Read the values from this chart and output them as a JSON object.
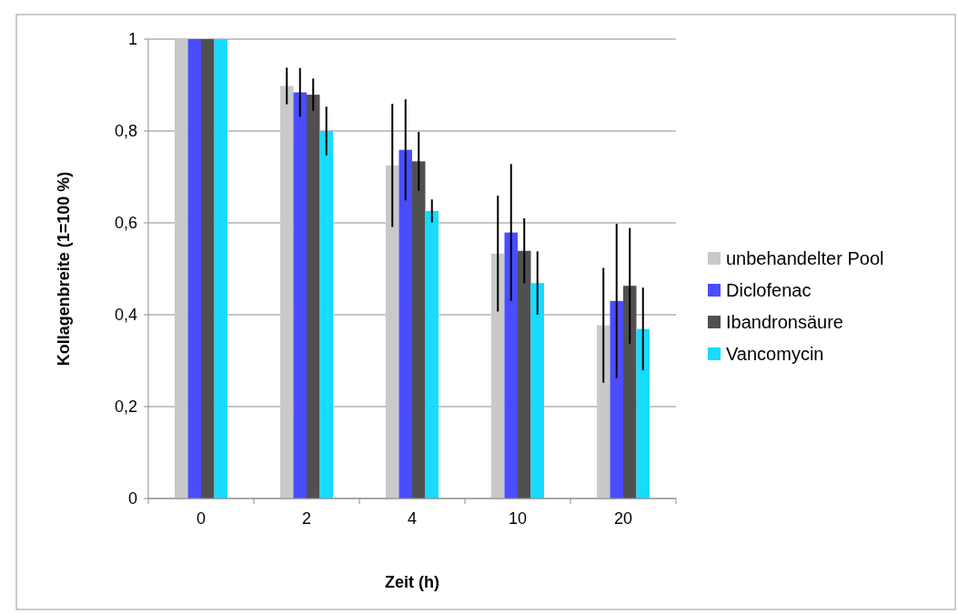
{
  "chart_data": {
    "type": "bar",
    "xlabel": "Zeit (h)",
    "ylabel": "Kollagenbreite (1=100 %)",
    "categories": [
      "0",
      "2",
      "4",
      "10",
      "20"
    ],
    "series": [
      {
        "name": "unbehandelter Pool",
        "color": "#c9c9c9",
        "values": [
          1,
          0.898,
          0.725,
          0.533,
          0.377
        ],
        "errors": [
          null,
          0.04,
          0.134,
          0.126,
          0.125
        ]
      },
      {
        "name": "Diclofenac",
        "color": "#4a4dff",
        "values": [
          1,
          0.884,
          0.759,
          0.579,
          0.43
        ],
        "errors": [
          null,
          0.053,
          0.11,
          0.149,
          0.168
        ]
      },
      {
        "name": "Ibandronsäure",
        "color": "#505050",
        "values": [
          1,
          0.879,
          0.734,
          0.539,
          0.463
        ],
        "errors": [
          null,
          0.035,
          0.064,
          0.071,
          0.126
        ]
      },
      {
        "name": "Vancomycin",
        "color": "#17dbff",
        "values": [
          1,
          0.8,
          0.626,
          0.469,
          0.369
        ],
        "errors": [
          null,
          0.053,
          0.025,
          0.069,
          0.09
        ]
      }
    ],
    "ylim": [
      0,
      1
    ],
    "yticks": [
      {
        "value": 0,
        "label": "0"
      },
      {
        "value": 0.2,
        "label": "0,2"
      },
      {
        "value": 0.4,
        "label": "0,4"
      },
      {
        "value": 0.6,
        "label": "0,6"
      },
      {
        "value": 0.8,
        "label": "0,8"
      },
      {
        "value": 1,
        "label": "1"
      }
    ],
    "grid": "y",
    "legend": "right"
  }
}
